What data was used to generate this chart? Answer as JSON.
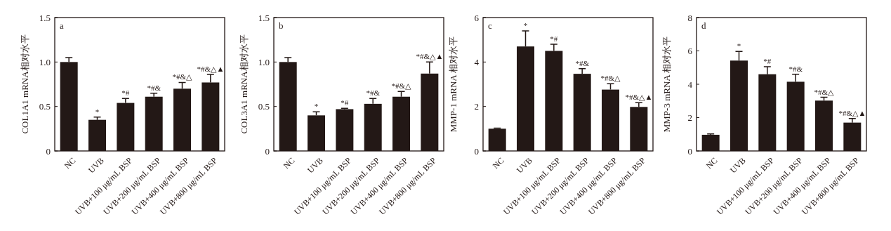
{
  "chart_data": [
    {
      "type": "bar",
      "ylabel": "COL1A1 mRNA相对水平",
      "categories": [
        "NC",
        "UVB",
        "UVB+100 μg/mL BSP",
        "UVB+200 μg/mL BSP",
        "UVB+400 μg/mL BSP",
        "UVB+800 μg/mL BSP"
      ],
      "color": "#231816",
      "values": [
        1.0,
        0.35,
        0.54,
        0.61,
        0.7,
        0.77
      ],
      "errors": [
        [
          1.0,
          1.05
        ],
        [
          0.35,
          0.38
        ],
        [
          0.54,
          0.59
        ],
        [
          0.61,
          0.65
        ],
        [
          0.7,
          0.77
        ],
        [
          0.77,
          0.86
        ]
      ],
      "ylim": [
        0,
        1.5
      ],
      "yticks": [
        0,
        0.5,
        {
          "value": 1,
          "label": "1.0"
        },
        1.5
      ],
      "annotations": [
        "a",
        {
          "text": "*",
          "x": "UVB",
          "y": 0.38
        },
        {
          "text": "*#",
          "x": "UVB+100 μg/mL BSP",
          "y": 0.59
        },
        {
          "text": "*#&",
          "x": "UVB+200 μg/mL BSP",
          "y": 0.65
        },
        {
          "text": "*#&△",
          "x": "UVB+400 μg/mL BSP",
          "y": 0.77
        },
        {
          "text": "*#&△▲",
          "x": "UVB+800 μg/mL BSP",
          "y": 0.86
        }
      ]
    },
    {
      "type": "bar",
      "ylabel": "COL3A1 mRNA相对水平",
      "categories": [
        "NC",
        "UVB",
        "UVB+100 μg/mL BSP",
        "UVB+200 μg/mL BSP",
        "UVB+400 μg/mL BSP",
        "UVB+800 μg/mL BSP"
      ],
      "color": "#231816",
      "values": [
        1.0,
        0.4,
        0.47,
        0.53,
        0.61,
        0.87
      ],
      "errors": [
        [
          1.0,
          1.05
        ],
        [
          0.4,
          0.44
        ],
        [
          0.47,
          0.48
        ],
        [
          0.53,
          0.59
        ],
        [
          0.61,
          0.67
        ],
        [
          0.87,
          1.0
        ]
      ],
      "ylim": [
        0,
        1.5
      ],
      "yticks": [
        0,
        0.5,
        {
          "value": 1,
          "label": "1.0"
        },
        1.5
      ],
      "annotations": [
        "b",
        {
          "text": "*",
          "x": "UVB",
          "y": 0.44
        },
        {
          "text": "*#",
          "x": "UVB+100 μg/mL BSP",
          "y": 0.48
        },
        {
          "text": "*#&",
          "x": "UVB+200 μg/mL BSP",
          "y": 0.59
        },
        {
          "text": "*#&△",
          "x": "UVB+400 μg/mL BSP",
          "y": 0.67
        },
        {
          "text": "*#&△▲",
          "x": "UVB+800 μg/mL BSP",
          "y": 1.0
        }
      ]
    },
    {
      "type": "bar",
      "ylabel": "MMP-1 mRNA 相对水平",
      "categories": [
        "NC",
        "UVB",
        "UVB+100 μg/mL BSP",
        "UVB+200 μg/mL BSP",
        "UVB+400 μg/mL BSP",
        "UVB+800 μg/mL BSP"
      ],
      "color": "#231816",
      "values": [
        1.0,
        4.7,
        4.5,
        3.47,
        2.76,
        1.98
      ],
      "errors": [
        [
          1.0,
          1.03
        ],
        [
          4.7,
          5.4
        ],
        [
          4.5,
          4.8
        ],
        [
          3.47,
          3.7
        ],
        [
          2.76,
          3.02
        ],
        [
          1.98,
          2.17
        ]
      ],
      "ylim": [
        0,
        6
      ],
      "yticks": [
        0,
        2,
        4,
        6
      ],
      "annotations": [
        "c",
        {
          "text": "*",
          "x": "UVB",
          "y": 5.4
        },
        {
          "text": "*#",
          "x": "UVB+100 μg/mL BSP",
          "y": 4.8
        },
        {
          "text": "*#&",
          "x": "UVB+200 μg/mL BSP",
          "y": 3.7
        },
        {
          "text": "*#&△",
          "x": "UVB+400 μg/mL BSP",
          "y": 3.02
        },
        {
          "text": "*#&△▲",
          "x": "UVB+800 μg/mL BSP",
          "y": 2.17
        }
      ]
    },
    {
      "type": "bar",
      "ylabel": "MMP-3 mRNA 相对水平",
      "categories": [
        "NC",
        "UVB",
        "UVB+100 μg/mL BSP",
        "UVB+200 μg/mL BSP",
        "UVB+400 μg/mL BSP",
        "UVB+800 μg/mL BSP"
      ],
      "color": "#231816",
      "values": [
        0.97,
        5.42,
        4.6,
        4.15,
        3.02,
        1.7
      ],
      "errors": [
        [
          0.97,
          1.02
        ],
        [
          5.42,
          5.97
        ],
        [
          4.6,
          5.05
        ],
        [
          4.15,
          4.6
        ],
        [
          3.02,
          3.22
        ],
        [
          1.7,
          1.95
        ]
      ],
      "ylim": [
        0,
        8
      ],
      "yticks": [
        0,
        2,
        4,
        6,
        8
      ],
      "annotations": [
        "d",
        {
          "text": "*",
          "x": "UVB",
          "y": 5.97
        },
        {
          "text": "*#",
          "x": "UVB+100 μg/mL BSP",
          "y": 5.05
        },
        {
          "text": "*#&",
          "x": "UVB+200 μg/mL BSP",
          "y": 4.6
        },
        {
          "text": "*#&△",
          "x": "UVB+400 μg/mL BSP",
          "y": 3.22
        },
        {
          "text": "*#&△▲",
          "x": "UVB+800 μg/mL BSP",
          "y": 1.95
        }
      ]
    }
  ]
}
